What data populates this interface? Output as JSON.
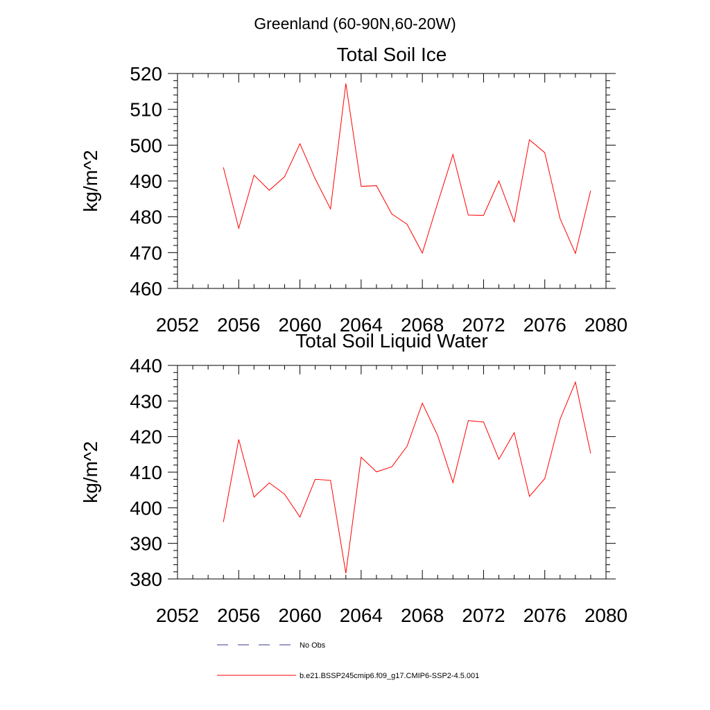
{
  "figure": {
    "title": "Greenland (60-90N,60-20W)"
  },
  "chart_data": [
    {
      "type": "line",
      "title": "Total Soil Ice",
      "xlabel": "",
      "ylabel": "kg/m^2",
      "xlim": [
        2052,
        2080
      ],
      "ylim": [
        460,
        520
      ],
      "xticks": [
        2052,
        2056,
        2060,
        2064,
        2068,
        2072,
        2076,
        2080
      ],
      "yticks": [
        460,
        470,
        480,
        490,
        500,
        510,
        520
      ],
      "grid": false,
      "series": [
        {
          "name": "b.e21.BSSP245cmip6.f09_g17.CMIP6-SSP2-4.5.001",
          "color": "#ff0000",
          "x": [
            2055,
            2056,
            2057,
            2058,
            2059,
            2060,
            2061,
            2062,
            2063,
            2064,
            2065,
            2066,
            2067,
            2068,
            2069,
            2070,
            2071,
            2072,
            2073,
            2074,
            2075,
            2076,
            2077,
            2078,
            2079
          ],
          "y": [
            493.8,
            476.8,
            491.6,
            487.4,
            491.2,
            500.4,
            490.6,
            482.2,
            517.2,
            488.5,
            488.7,
            480.8,
            477.9,
            469.9,
            483.8,
            497.4,
            480.5,
            480.4,
            490.0,
            478.6,
            501.5,
            497.9,
            479.5,
            469.8,
            487.3
          ]
        }
      ]
    },
    {
      "type": "line",
      "title": "Total Soil Liquid Water",
      "xlabel": "",
      "ylabel": "kg/m^2",
      "xlim": [
        2052,
        2080
      ],
      "ylim": [
        380,
        440
      ],
      "xticks": [
        2052,
        2056,
        2060,
        2064,
        2068,
        2072,
        2076,
        2080
      ],
      "yticks": [
        380,
        390,
        400,
        410,
        420,
        430,
        440
      ],
      "grid": false,
      "series": [
        {
          "name": "b.e21.BSSP245cmip6.f09_g17.CMIP6-SSP2-4.5.001",
          "color": "#ff0000",
          "x": [
            2055,
            2056,
            2057,
            2058,
            2059,
            2060,
            2061,
            2062,
            2063,
            2064,
            2065,
            2066,
            2067,
            2068,
            2069,
            2070,
            2071,
            2072,
            2073,
            2074,
            2075,
            2076,
            2077,
            2078,
            2079
          ],
          "y": [
            396.0,
            419.2,
            403.0,
            407.0,
            403.8,
            397.4,
            408.0,
            407.7,
            381.6,
            414.2,
            410.1,
            411.5,
            417.3,
            429.4,
            420.3,
            407.1,
            424.5,
            424.1,
            413.6,
            421.1,
            403.2,
            408.2,
            424.9,
            435.3,
            415.3
          ]
        }
      ]
    }
  ],
  "legend": {
    "placement": "bottom",
    "items": [
      {
        "label": "No Obs",
        "color": "#3a3a8c",
        "style": "dashed"
      },
      {
        "label": "b.e21.BSSP245cmip6.f09_g17.CMIP6-SSP2-4.5.001",
        "color": "#ff0000",
        "style": "solid"
      }
    ]
  }
}
